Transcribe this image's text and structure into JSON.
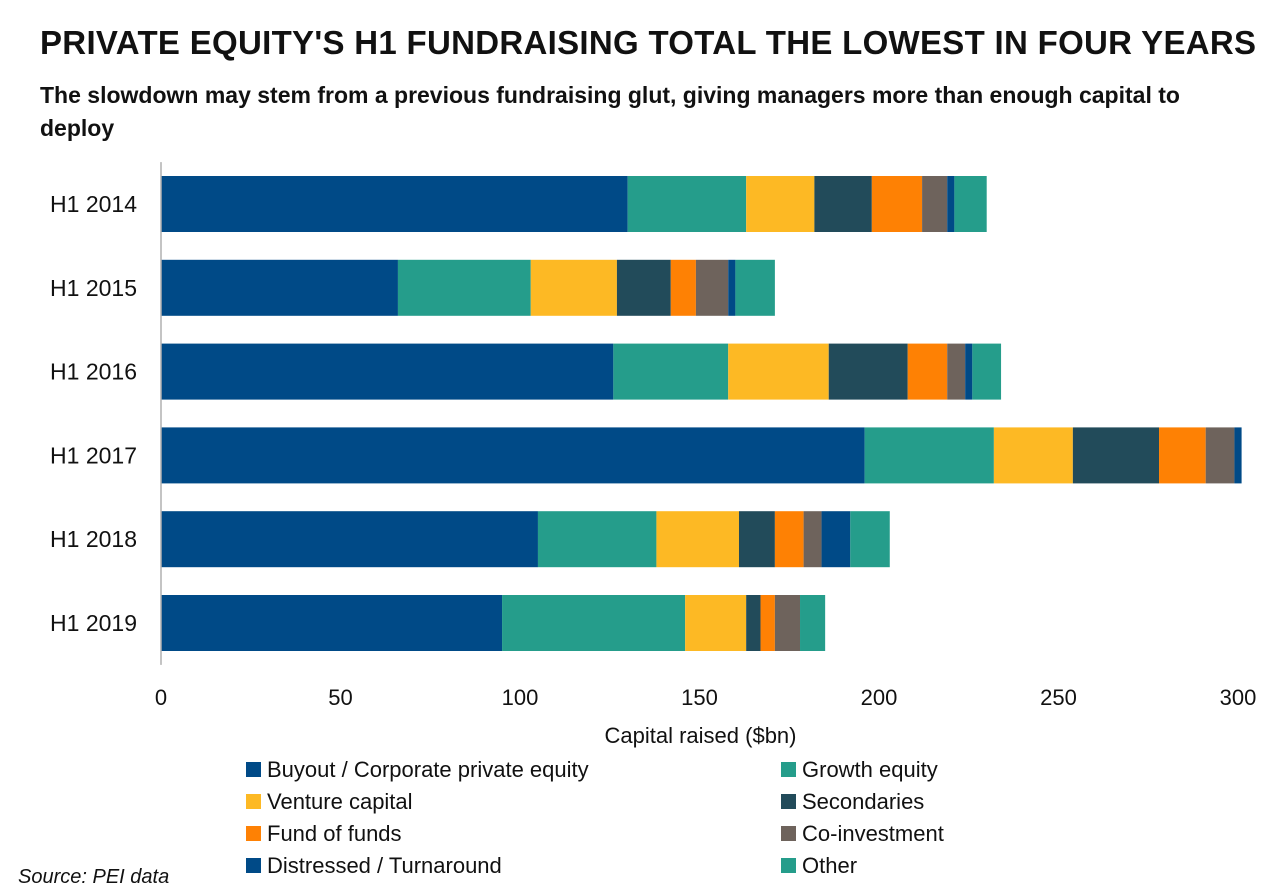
{
  "title": "PRIVATE EQUITY'S H1 FUNDRAISING TOTAL THE LOWEST IN FOUR YEARS",
  "subtitle": "The slowdown may stem from a previous fundraising glut, giving managers more than enough capital to deploy",
  "source": "Source: PEI data",
  "chart_data": {
    "type": "bar",
    "orientation": "horizontal",
    "stacked": true,
    "categories": [
      "H1 2014",
      "H1 2015",
      "H1 2016",
      "H1 2017",
      "H1 2018",
      "H1 2019"
    ],
    "xlabel": "Capital raised ($bn)",
    "ylabel": "",
    "xlim": [
      0,
      300
    ],
    "xticks": [
      0,
      50,
      100,
      150,
      200,
      250,
      300
    ],
    "grid": false,
    "legend_position": "bottom",
    "series": [
      {
        "name": "Buyout / Corporate private equity",
        "color": "#004a87",
        "values": [
          130,
          66,
          126,
          196,
          105,
          95
        ]
      },
      {
        "name": "Growth equity",
        "color": "#259d8b",
        "values": [
          33,
          37,
          32,
          36,
          33,
          51
        ]
      },
      {
        "name": "Venture capital",
        "color": "#fdb924",
        "values": [
          19,
          24,
          28,
          22,
          23,
          17
        ]
      },
      {
        "name": "Secondaries",
        "color": "#224b5a",
        "values": [
          16,
          15,
          22,
          24,
          10,
          4
        ]
      },
      {
        "name": "Fund of funds",
        "color": "#fe8104",
        "values": [
          14,
          7,
          11,
          13,
          8,
          4
        ]
      },
      {
        "name": "Co-investment",
        "color": "#6e635c",
        "values": [
          7,
          9,
          5,
          8,
          5,
          7
        ]
      },
      {
        "name": "Distressed / Turnaround",
        "color": "#004a87",
        "values": [
          2,
          2,
          2,
          2,
          8,
          0
        ]
      },
      {
        "name": "Other",
        "color": "#259d8b",
        "values": [
          9,
          11,
          8,
          0,
          11,
          7
        ]
      }
    ]
  }
}
